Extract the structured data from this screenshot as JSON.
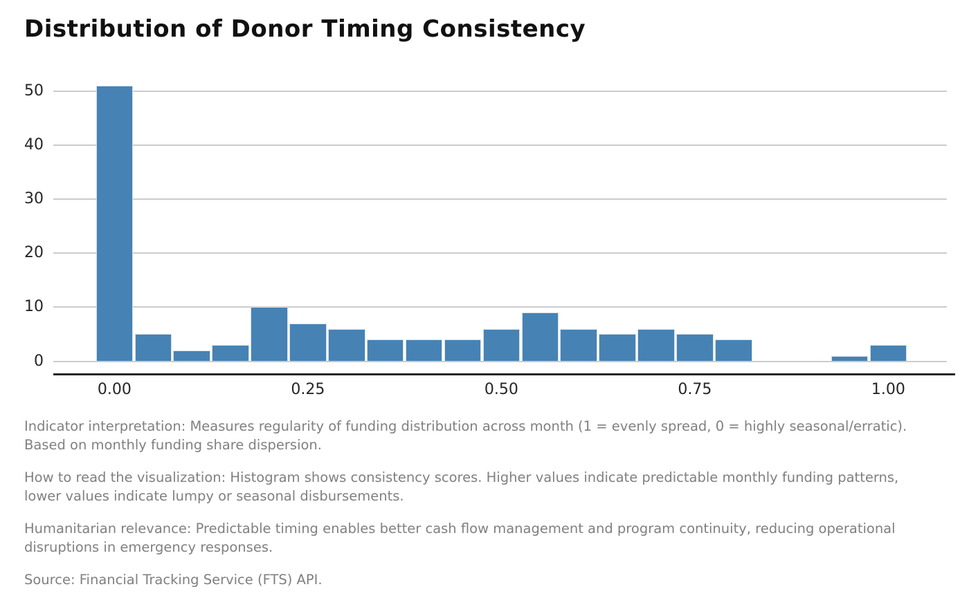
{
  "title": "Distribution of Donor Timing Consistency",
  "chart_data": {
    "type": "bar",
    "subtype": "histogram",
    "title": "Distribution of Donor Timing Consistency",
    "xlabel": "",
    "ylabel": "",
    "bin_width": 0.05,
    "bin_centers": [
      0.0,
      0.05,
      0.1,
      0.15,
      0.2,
      0.25,
      0.3,
      0.35,
      0.4,
      0.45,
      0.5,
      0.55,
      0.6,
      0.65,
      0.7,
      0.75,
      0.8,
      0.85,
      0.9,
      0.95,
      1.0
    ],
    "counts": [
      51,
      5,
      2,
      3,
      10,
      7,
      6,
      4,
      4,
      4,
      6,
      9,
      6,
      5,
      6,
      5,
      4,
      0,
      0,
      1,
      3
    ],
    "xticks": [
      {
        "value": 0.0,
        "label": "0.00"
      },
      {
        "value": 0.25,
        "label": "0.25"
      },
      {
        "value": 0.5,
        "label": "0.50"
      },
      {
        "value": 0.75,
        "label": "0.75"
      },
      {
        "value": 1.0,
        "label": "1.00"
      }
    ],
    "yticks": [
      0,
      10,
      20,
      30,
      40,
      50
    ],
    "ylim": [
      0,
      52
    ],
    "grid": "horizontal",
    "legend": "none",
    "bar_color": "#4682b4",
    "bar_edge_color": "#d6dfe8",
    "gridline_color": "#cccccc",
    "axis_color": "#262626"
  },
  "notes": [
    "Indicator interpretation: Measures regularity of funding distribution across month (1 = evenly spread, 0 = highly seasonal/erratic). Based on monthly funding share dispersion.",
    "How to read the visualization: Histogram shows consistency scores. Higher values indicate predictable monthly funding patterns, lower values indicate lumpy or seasonal disbursements.",
    "Humanitarian relevance: Predictable timing enables better cash flow management and program continuity, reducing operational disruptions in emergency responses.",
    "Source: Financial Tracking Service (FTS) API."
  ]
}
